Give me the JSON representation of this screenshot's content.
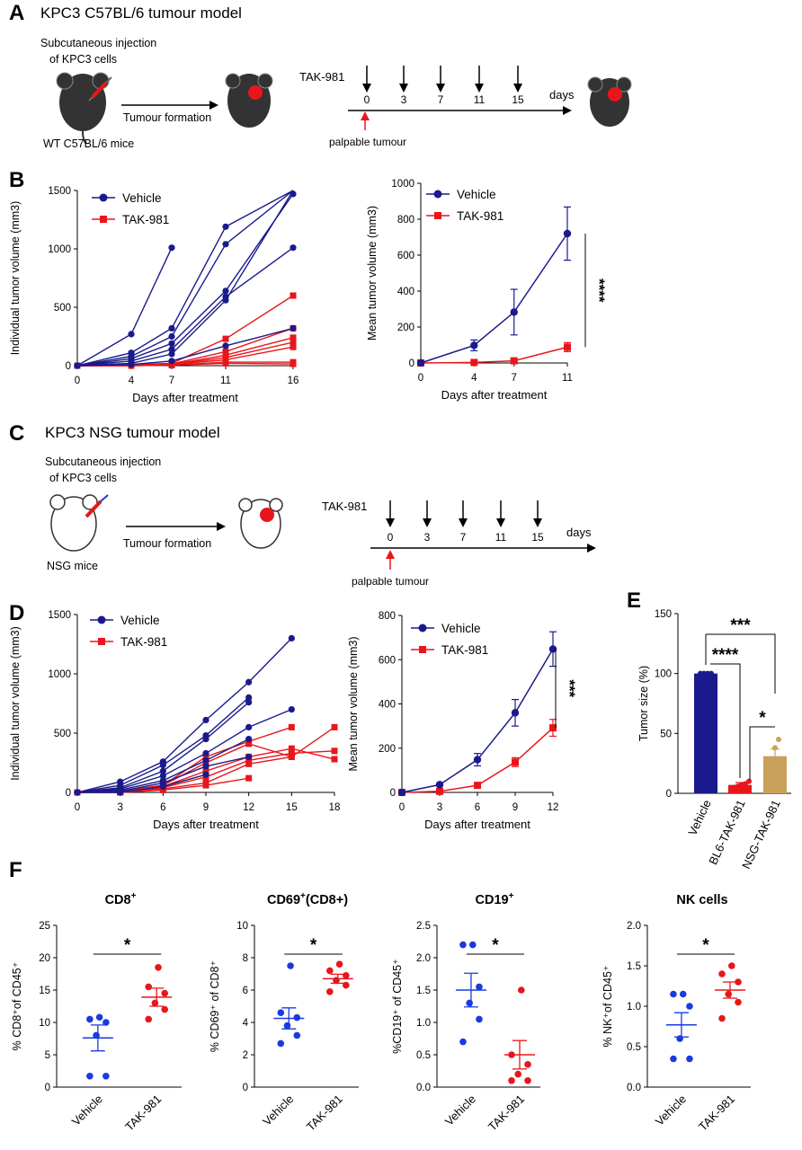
{
  "colors": {
    "vehicle": "#1a1a8c",
    "tak": "#e8161b",
    "nsg": "#c9a15a",
    "blue_dot": "#1a3ae0",
    "red_dot": "#e8161b"
  },
  "panelA": {
    "letter": "A",
    "title": "KPC3 C57BL/6  tumour model",
    "inj1": "Subcutaneous injection",
    "inj2": "of  KPC3 cells",
    "arrow_label": "Tumour formation",
    "mice": "WT C57BL/6 mice",
    "drug": "TAK-981",
    "days": [
      "0",
      "3",
      "7",
      "11",
      "15"
    ],
    "days_label": "days",
    "palpable": "palpable tumour"
  },
  "panelC": {
    "letter": "C",
    "title": "KPC3 NSG tumour model",
    "inj1": "Subcutaneous injection",
    "inj2": "of  KPC3 cells",
    "arrow_label": "Tumour formation",
    "mice": "NSG mice",
    "drug": "TAK-981",
    "days": [
      "0",
      "3",
      "7",
      "11",
      "15"
    ],
    "days_label": "days",
    "palpable": "palpable tumour"
  },
  "letters": {
    "B": "B",
    "D": "D",
    "E": "E",
    "F": "F"
  },
  "chart_data": [
    {
      "id": "B-left",
      "type": "line",
      "xlabel": "Days after treatment",
      "ylabel": "Individual tumor volume (mm3)",
      "xlim": [
        0,
        16
      ],
      "ylim": [
        0,
        1500
      ],
      "xticks": [
        "0",
        "4",
        "7",
        "11",
        "16"
      ],
      "yticks": [
        "0",
        "500",
        "1000",
        "1500"
      ],
      "legend": [
        "Vehicle",
        "TAK-981"
      ],
      "vehicle": [
        {
          "x": [
            0,
            4,
            7
          ],
          "y": [
            0,
            270,
            1010
          ]
        },
        {
          "x": [
            0,
            4,
            7,
            11,
            16
          ],
          "y": [
            0,
            110,
            320,
            1190,
            1500
          ]
        },
        {
          "x": [
            0,
            4,
            7,
            11,
            16
          ],
          "y": [
            0,
            80,
            250,
            1040,
            1500
          ]
        },
        {
          "x": [
            0,
            4,
            7,
            11,
            16
          ],
          "y": [
            0,
            60,
            190,
            640,
            1470
          ]
        },
        {
          "x": [
            0,
            4,
            7,
            11,
            16
          ],
          "y": [
            0,
            40,
            140,
            590,
            1010
          ]
        },
        {
          "x": [
            0,
            4,
            7,
            11,
            16
          ],
          "y": [
            0,
            20,
            100,
            560,
            1500
          ]
        },
        {
          "x": [
            0,
            4,
            7,
            11,
            16
          ],
          "y": [
            0,
            10,
            40,
            170,
            320
          ]
        }
      ],
      "tak": [
        {
          "x": [
            0,
            4,
            7,
            11,
            16
          ],
          "y": [
            0,
            10,
            20,
            230,
            600
          ]
        },
        {
          "x": [
            0,
            4,
            7,
            11,
            16
          ],
          "y": [
            0,
            5,
            15,
            120,
            320
          ]
        },
        {
          "x": [
            0,
            4,
            7,
            11,
            16
          ],
          "y": [
            0,
            5,
            10,
            90,
            240
          ]
        },
        {
          "x": [
            0,
            4,
            7,
            11,
            16
          ],
          "y": [
            0,
            5,
            10,
            70,
            200
          ]
        },
        {
          "x": [
            0,
            4,
            7,
            11,
            16
          ],
          "y": [
            0,
            0,
            10,
            50,
            160
          ]
        },
        {
          "x": [
            0,
            4,
            7,
            11,
            16
          ],
          "y": [
            0,
            0,
            5,
            30,
            30
          ]
        },
        {
          "x": [
            0,
            4,
            7,
            11,
            16
          ],
          "y": [
            0,
            0,
            5,
            20,
            15
          ]
        }
      ]
    },
    {
      "id": "B-right",
      "type": "line",
      "xlabel": "Days after treatment",
      "ylabel": "Mean tumor volume (mm3)",
      "xlim": [
        0,
        11
      ],
      "ylim": [
        0,
        1000
      ],
      "xticks": [
        "0",
        "4",
        "7",
        "11"
      ],
      "yticks": [
        "0",
        "200",
        "400",
        "600",
        "800",
        "1000"
      ],
      "legend": [
        "Vehicle",
        "TAK-981"
      ],
      "x": [
        0,
        4,
        7,
        11
      ],
      "vehicle": {
        "y": [
          0,
          98,
          283,
          720
        ],
        "err": [
          5,
          30,
          127,
          148
        ]
      },
      "tak": {
        "y": [
          0,
          3,
          12,
          88
        ],
        "err": [
          2,
          3,
          8,
          25
        ]
      },
      "significance": "****"
    },
    {
      "id": "D-left",
      "type": "line",
      "xlabel": "Days after treatment",
      "ylabel": "Individual tumor volume (mm3)",
      "xlim": [
        0,
        18
      ],
      "ylim": [
        0,
        1500
      ],
      "xticks": [
        "0",
        "3",
        "6",
        "9",
        "12",
        "15",
        "18"
      ],
      "yticks": [
        "0",
        "500",
        "1000",
        "1500"
      ],
      "legend": [
        "Vehicle",
        "TAK-981"
      ],
      "vehicle": [
        {
          "x": [
            0,
            3,
            6,
            9,
            12,
            15
          ],
          "y": [
            0,
            90,
            260,
            610,
            930,
            1300
          ]
        },
        {
          "x": [
            0,
            3,
            6,
            9,
            12
          ],
          "y": [
            0,
            60,
            230,
            480,
            800
          ]
        },
        {
          "x": [
            0,
            3,
            6,
            9,
            12
          ],
          "y": [
            0,
            40,
            180,
            450,
            760
          ]
        },
        {
          "x": [
            0,
            3,
            6,
            9,
            12,
            15
          ],
          "y": [
            0,
            30,
            140,
            330,
            550,
            700
          ]
        },
        {
          "x": [
            0,
            3,
            6,
            9,
            12
          ],
          "y": [
            0,
            20,
            100,
            270,
            450
          ]
        },
        {
          "x": [
            0,
            3,
            6,
            9,
            12
          ],
          "y": [
            0,
            10,
            80,
            220,
            300
          ]
        },
        {
          "x": [
            0,
            3,
            6,
            9
          ],
          "y": [
            0,
            0,
            50,
            150
          ]
        }
      ],
      "tak": [
        {
          "x": [
            0,
            3,
            6,
            9,
            12,
            15
          ],
          "y": [
            0,
            10,
            60,
            300,
            430,
            550
          ]
        },
        {
          "x": [
            0,
            3,
            6,
            9,
            12,
            15,
            18
          ],
          "y": [
            0,
            10,
            60,
            250,
            410,
            300,
            550
          ]
        },
        {
          "x": [
            0,
            3,
            6,
            9,
            12,
            15,
            18
          ],
          "y": [
            0,
            5,
            50,
            180,
            300,
            370,
            280
          ]
        },
        {
          "x": [
            0,
            3,
            6,
            9,
            12,
            15,
            18
          ],
          "y": [
            0,
            5,
            40,
            130,
            270,
            330,
            350
          ]
        },
        {
          "x": [
            0,
            3,
            6,
            9,
            12,
            15
          ],
          "y": [
            0,
            0,
            30,
            80,
            240,
            300
          ]
        },
        {
          "x": [
            0,
            3,
            6,
            9,
            12
          ],
          "y": [
            0,
            0,
            20,
            60,
            120
          ]
        }
      ]
    },
    {
      "id": "D-right",
      "type": "line",
      "xlabel": "Days after treatment",
      "ylabel": "Mean tumor volume (mm3)",
      "xlim": [
        0,
        12
      ],
      "ylim": [
        0,
        800
      ],
      "xticks": [
        "0",
        "3",
        "6",
        "9",
        "12"
      ],
      "yticks": [
        "0",
        "200",
        "400",
        "600",
        "800"
      ],
      "legend": [
        "Vehicle",
        "TAK-981"
      ],
      "x": [
        0,
        3,
        6,
        9,
        12
      ],
      "vehicle": {
        "y": [
          0,
          35,
          148,
          360,
          648
        ],
        "err": [
          3,
          6,
          28,
          60,
          78
        ]
      },
      "tak": {
        "y": [
          0,
          5,
          32,
          137,
          292
        ],
        "err": [
          2,
          3,
          6,
          20,
          38
        ]
      },
      "significance": "***"
    },
    {
      "id": "E",
      "type": "bar",
      "ylabel": "Tumor size (%)",
      "ylim": [
        0,
        150
      ],
      "yticks": [
        "0",
        "50",
        "100",
        "150"
      ],
      "categories": [
        "Vehicle",
        "BL6-TAK-981",
        "NSG-TAK-981"
      ],
      "values": [
        100,
        7,
        31
      ],
      "err": [
        0,
        2,
        6
      ],
      "points": [
        [
          100,
          100,
          100,
          100
        ],
        [
          3,
          5,
          6,
          7,
          8,
          10
        ],
        [
          20,
          38,
          45
        ]
      ],
      "significance": [
        {
          "a": 0,
          "b": 1,
          "label": "****"
        },
        {
          "a": 0,
          "b": 2,
          "label": "***"
        },
        {
          "a": 1,
          "b": 2,
          "label": "*"
        }
      ]
    },
    {
      "id": "F1",
      "type": "scatter",
      "title_main": "CD8",
      "title_sup": "+",
      "title_rest": "",
      "ylabel": "% CD8⁺of CD45⁺",
      "ylim": [
        0,
        25
      ],
      "yticks": [
        "0",
        "5",
        "10",
        "15",
        "20",
        "25"
      ],
      "categories": [
        "Vehicle",
        "TAK-981"
      ],
      "points": [
        [
          1.7,
          1.7,
          8,
          10,
          10.5,
          10.8
        ],
        [
          10.5,
          12,
          13,
          14.5,
          15.5,
          18.5
        ]
      ],
      "mean": [
        7.6,
        13.9
      ],
      "sem": [
        2.0,
        1.4
      ],
      "significance": "*"
    },
    {
      "id": "F2",
      "type": "scatter",
      "title_main": "CD69",
      "title_sup": "+",
      "title_rest": "(CD8+)",
      "ylabel": "% CD69⁺ of CD8⁺",
      "ylim": [
        0,
        10
      ],
      "yticks": [
        "0",
        "2",
        "4",
        "6",
        "8",
        "10"
      ],
      "categories": [
        "Vehicle",
        "TAK-981"
      ],
      "points": [
        [
          2.7,
          3.2,
          3.8,
          4.3,
          4.6,
          7.5
        ],
        [
          5.9,
          6.3,
          6.6,
          6.9,
          7.2,
          7.6
        ]
      ],
      "mean": [
        4.25,
        6.7
      ],
      "sem": [
        0.65,
        0.28
      ],
      "significance": "*"
    },
    {
      "id": "F3",
      "type": "scatter",
      "title_main": "CD19",
      "title_sup": "+",
      "title_rest": "",
      "ylabel": "%CD19⁺ of CD45⁺",
      "ylim": [
        0,
        2.5
      ],
      "yticks": [
        "0.0",
        "0.5",
        "1.0",
        "1.5",
        "2.0",
        "2.5"
      ],
      "categories": [
        "Vehicle",
        "TAK-981"
      ],
      "points": [
        [
          0.7,
          1.05,
          1.3,
          1.55,
          2.2,
          2.2
        ],
        [
          0.1,
          0.1,
          0.2,
          0.35,
          0.5,
          1.5
        ]
      ],
      "mean": [
        1.5,
        0.5
      ],
      "sem": [
        0.26,
        0.22
      ],
      "significance": "*"
    },
    {
      "id": "F4",
      "type": "scatter",
      "title_main": "NK cells",
      "title_sup": "",
      "title_rest": "",
      "ylabel": "% NK⁺of CD45⁺",
      "ylim": [
        0,
        2.0
      ],
      "yticks": [
        "0.0",
        "0.5",
        "1.0",
        "1.5",
        "2.0"
      ],
      "categories": [
        "Vehicle",
        "TAK-981"
      ],
      "points": [
        [
          0.35,
          0.35,
          0.6,
          1.0,
          1.15,
          1.15
        ],
        [
          0.85,
          1.05,
          1.15,
          1.3,
          1.4,
          1.5
        ]
      ],
      "mean": [
        0.77,
        1.2
      ],
      "sem": [
        0.15,
        0.1
      ],
      "significance": "*"
    }
  ]
}
